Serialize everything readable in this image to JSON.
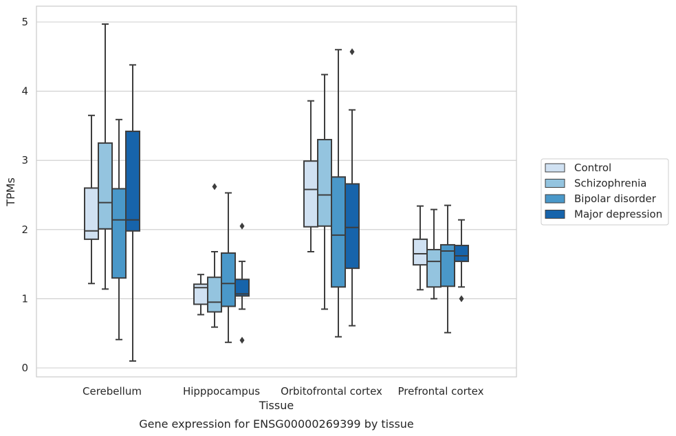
{
  "chart_data": {
    "type": "boxplot",
    "xlabel": "Tissue",
    "ylabel": "TPMs",
    "caption": "Gene expression for ENSG00000269399 by tissue",
    "ylim": [
      -0.12,
      5.22
    ],
    "yticks": [
      0,
      1,
      2,
      3,
      4,
      5
    ],
    "grid": "horizontal",
    "legend_position": "right",
    "categories": [
      "Cerebellum",
      "Hipppocampus",
      "Orbitofrontal cortex",
      "Prefrontal cortex"
    ],
    "series": [
      {
        "name": "Control",
        "color": "#d0e1f2",
        "boxes": [
          {
            "whislo": 1.22,
            "q1": 1.86,
            "med": 1.98,
            "q3": 2.6,
            "whishi": 3.65,
            "fliers": []
          },
          {
            "whislo": 0.77,
            "q1": 0.92,
            "med": 1.16,
            "q3": 1.21,
            "whishi": 1.35,
            "fliers": []
          },
          {
            "whislo": 1.68,
            "q1": 2.04,
            "med": 2.58,
            "q3": 2.99,
            "whishi": 3.86,
            "fliers": []
          },
          {
            "whislo": 1.13,
            "q1": 1.49,
            "med": 1.65,
            "q3": 1.86,
            "whishi": 2.34,
            "fliers": []
          }
        ]
      },
      {
        "name": "Schizophrenia",
        "color": "#94c4df",
        "boxes": [
          {
            "whislo": 1.14,
            "q1": 2.01,
            "med": 2.39,
            "q3": 3.25,
            "whishi": 4.97,
            "fliers": []
          },
          {
            "whislo": 0.59,
            "q1": 0.81,
            "med": 0.95,
            "q3": 1.31,
            "whishi": 1.68,
            "fliers": [
              2.62
            ]
          },
          {
            "whislo": 0.85,
            "q1": 2.05,
            "med": 2.5,
            "q3": 3.3,
            "whishi": 4.24,
            "fliers": []
          },
          {
            "whislo": 1.0,
            "q1": 1.17,
            "med": 1.54,
            "q3": 1.71,
            "whishi": 2.29,
            "fliers": []
          }
        ]
      },
      {
        "name": "Bipolar disorder",
        "color": "#4a98c9",
        "boxes": [
          {
            "whislo": 0.41,
            "q1": 1.3,
            "med": 2.14,
            "q3": 2.59,
            "whishi": 3.59,
            "fliers": []
          },
          {
            "whislo": 0.37,
            "q1": 0.89,
            "med": 1.22,
            "q3": 1.66,
            "whishi": 2.53,
            "fliers": []
          },
          {
            "whislo": 0.45,
            "q1": 1.17,
            "med": 1.92,
            "q3": 2.76,
            "whishi": 4.6,
            "fliers": []
          },
          {
            "whislo": 0.51,
            "q1": 1.18,
            "med": 1.69,
            "q3": 1.78,
            "whishi": 2.35,
            "fliers": []
          }
        ]
      },
      {
        "name": "Major depression",
        "color": "#1764ab",
        "boxes": [
          {
            "whislo": 0.1,
            "q1": 1.98,
            "med": 2.14,
            "q3": 3.42,
            "whishi": 4.38,
            "fliers": []
          },
          {
            "whislo": 0.85,
            "q1": 1.04,
            "med": 1.07,
            "q3": 1.28,
            "whishi": 1.54,
            "fliers": [
              2.05,
              0.4
            ]
          },
          {
            "whislo": 0.61,
            "q1": 1.44,
            "med": 2.03,
            "q3": 2.66,
            "whishi": 3.73,
            "fliers": [
              4.57
            ]
          },
          {
            "whislo": 1.17,
            "q1": 1.54,
            "med": 1.62,
            "q3": 1.77,
            "whishi": 2.14,
            "fliers": [
              1.0
            ]
          }
        ]
      }
    ]
  }
}
